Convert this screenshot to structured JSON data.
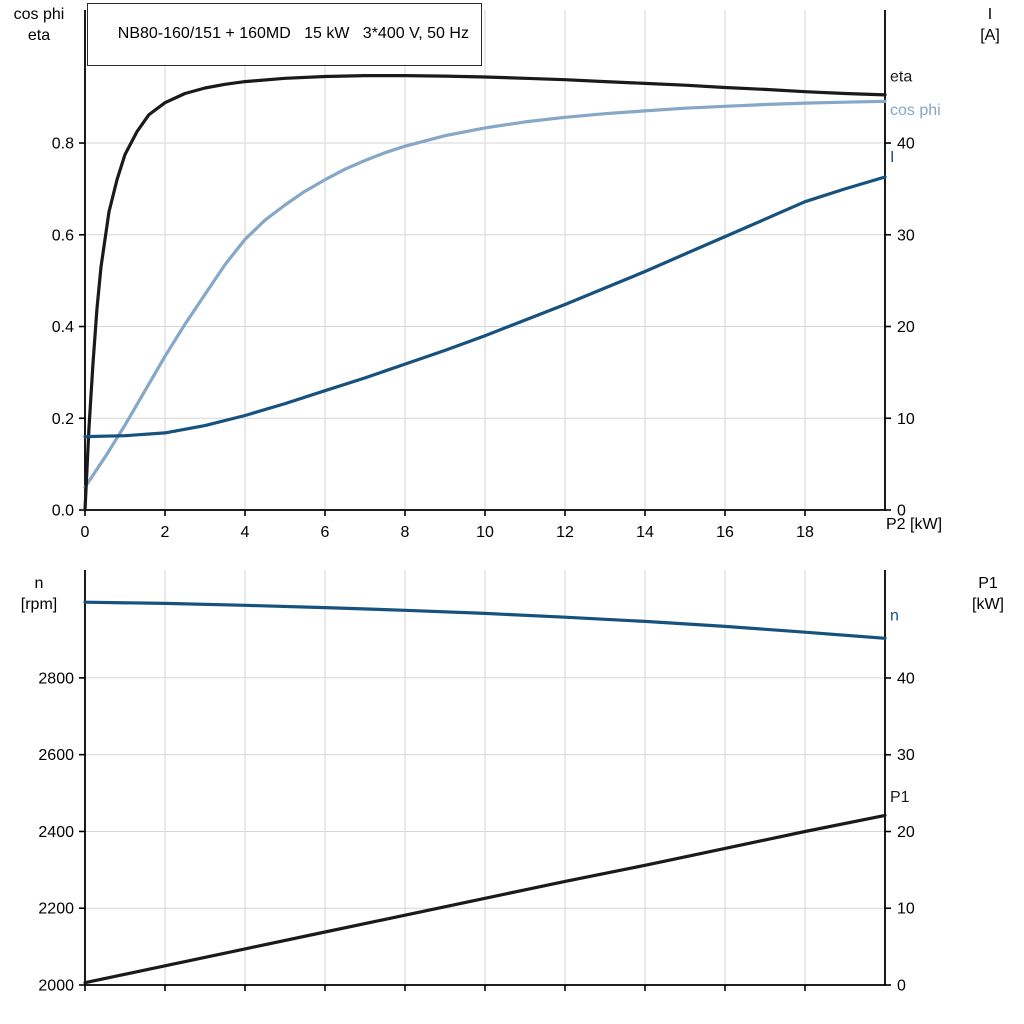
{
  "colors": {
    "grid": "#d6d6d6",
    "axis": "#000000",
    "black_curve": "#1a1a1a",
    "light_blue": "#86a7c7",
    "dark_blue": "#17527e"
  },
  "chart_data": [
    {
      "type": "line",
      "title": "NB80-160/151 + 160MD   15 kW   3*400 V, 50 Hz",
      "x_label": "P2 [kW]",
      "x_axis": {
        "range": [
          0,
          20
        ],
        "ticks": [
          0,
          2,
          4,
          6,
          8,
          10,
          12,
          14,
          16,
          18
        ],
        "tick_labels": [
          "0",
          "2",
          "4",
          "6",
          "8",
          "10",
          "12",
          "14",
          "16",
          "18"
        ],
        "show_labels": true
      },
      "left_axis": {
        "label_lines": [
          "cos phi",
          "eta"
        ],
        "range": [
          0,
          1.09
        ],
        "ticks": [
          0,
          0.2,
          0.4,
          0.6,
          0.8
        ],
        "tick_labels": [
          "0.0",
          "0.2",
          "0.4",
          "0.6",
          "0.8"
        ]
      },
      "right_axis": {
        "label_lines": [
          "I",
          "[A]"
        ],
        "range": [
          0,
          54.5
        ],
        "ticks": [
          0,
          10,
          20,
          30,
          40
        ],
        "tick_labels": [
          "0",
          "10",
          "20",
          "30",
          "40"
        ]
      },
      "series": [
        {
          "key": "cos-phi",
          "label": "cos phi",
          "axis": "left",
          "color": "#86a7c7",
          "label_value": 0.872,
          "points": [
            [
              0,
              0.05
            ],
            [
              0.5,
              0.115
            ],
            [
              1,
              0.185
            ],
            [
              1.5,
              0.26
            ],
            [
              2,
              0.335
            ],
            [
              2.5,
              0.405
            ],
            [
              3,
              0.47
            ],
            [
              3.5,
              0.535
            ],
            [
              4,
              0.59
            ],
            [
              4.5,
              0.632
            ],
            [
              5,
              0.665
            ],
            [
              5.5,
              0.695
            ],
            [
              6,
              0.72
            ],
            [
              6.5,
              0.743
            ],
            [
              7,
              0.762
            ],
            [
              7.5,
              0.779
            ],
            [
              8,
              0.793
            ],
            [
              9,
              0.816
            ],
            [
              10,
              0.833
            ],
            [
              11,
              0.846
            ],
            [
              12,
              0.856
            ],
            [
              13,
              0.864
            ],
            [
              14,
              0.87
            ],
            [
              15,
              0.876
            ],
            [
              16,
              0.88
            ],
            [
              17,
              0.884
            ],
            [
              18,
              0.887
            ],
            [
              19,
              0.889
            ],
            [
              20,
              0.891
            ]
          ]
        },
        {
          "key": "eta",
          "label": "eta",
          "axis": "left",
          "color": "#1a1a1a",
          "label_value": 0.945,
          "points": [
            [
              0,
              0
            ],
            [
              0.1,
              0.18
            ],
            [
              0.2,
              0.32
            ],
            [
              0.3,
              0.44
            ],
            [
              0.4,
              0.53
            ],
            [
              0.6,
              0.65
            ],
            [
              0.8,
              0.72
            ],
            [
              1,
              0.775
            ],
            [
              1.3,
              0.825
            ],
            [
              1.6,
              0.862
            ],
            [
              2,
              0.888
            ],
            [
              2.5,
              0.908
            ],
            [
              3,
              0.92
            ],
            [
              3.5,
              0.928
            ],
            [
              4,
              0.934
            ],
            [
              5,
              0.941
            ],
            [
              6,
              0.945
            ],
            [
              7,
              0.947
            ],
            [
              8,
              0.947
            ],
            [
              9,
              0.946
            ],
            [
              10,
              0.944
            ],
            [
              11,
              0.941
            ],
            [
              12,
              0.938
            ],
            [
              13,
              0.934
            ],
            [
              14,
              0.93
            ],
            [
              15,
              0.926
            ],
            [
              16,
              0.921
            ],
            [
              17,
              0.917
            ],
            [
              18,
              0.912
            ],
            [
              19,
              0.908
            ],
            [
              20,
              0.905
            ]
          ]
        },
        {
          "key": "current",
          "label": "I",
          "axis": "right",
          "color": "#17527e",
          "label_value": 38.5,
          "points": [
            [
              0,
              8
            ],
            [
              1,
              8.1
            ],
            [
              2,
              8.4
            ],
            [
              3,
              9.2
            ],
            [
              4,
              10.3
            ],
            [
              5,
              11.6
            ],
            [
              6,
              13
            ],
            [
              7,
              14.4
            ],
            [
              8,
              15.9
            ],
            [
              9,
              17.4
            ],
            [
              10,
              19
            ],
            [
              11,
              20.7
            ],
            [
              12,
              22.4
            ],
            [
              13,
              24.2
            ],
            [
              14,
              26
            ],
            [
              15,
              27.9
            ],
            [
              16,
              29.8
            ],
            [
              17,
              31.7
            ],
            [
              18,
              33.6
            ],
            [
              19,
              35
            ],
            [
              20,
              36.3
            ]
          ]
        }
      ]
    },
    {
      "type": "line",
      "title": "",
      "x_label": "",
      "x_axis": {
        "range": [
          0,
          20
        ],
        "ticks": [
          0,
          2,
          4,
          6,
          8,
          10,
          12,
          14,
          16,
          18
        ],
        "tick_labels": [],
        "show_labels": false
      },
      "left_axis": {
        "label_lines": [
          "n",
          "[rpm]"
        ],
        "range": [
          2000,
          3081
        ],
        "ticks": [
          2000,
          2200,
          2400,
          2600,
          2800
        ],
        "tick_labels": [
          "2000",
          "2200",
          "2400",
          "2600",
          "2800"
        ]
      },
      "right_axis": {
        "label_lines": [
          "P1",
          "[kW]"
        ],
        "range": [
          0,
          54.07
        ],
        "ticks": [
          0,
          10,
          20,
          30,
          40
        ],
        "tick_labels": [
          "0",
          "10",
          "20",
          "30",
          "40"
        ]
      },
      "series": [
        {
          "key": "speed",
          "label": "n",
          "axis": "left",
          "color": "#17527e",
          "label_value": 2962,
          "points": [
            [
              0,
              2997
            ],
            [
              2,
              2994
            ],
            [
              4,
              2989
            ],
            [
              6,
              2983
            ],
            [
              8,
              2976
            ],
            [
              10,
              2968
            ],
            [
              12,
              2958
            ],
            [
              14,
              2947
            ],
            [
              16,
              2934
            ],
            [
              18,
              2919
            ],
            [
              20,
              2903
            ]
          ]
        },
        {
          "key": "p1",
          "label": "P1",
          "axis": "right",
          "color": "#1a1a1a",
          "label_value": 24.5,
          "points": [
            [
              0,
              0.3
            ],
            [
              2,
              2.5
            ],
            [
              4,
              4.7
            ],
            [
              6,
              6.9
            ],
            [
              8,
              9.1
            ],
            [
              10,
              11.3
            ],
            [
              12,
              13.5
            ],
            [
              14,
              15.6
            ],
            [
              16,
              17.8
            ],
            [
              18,
              20
            ],
            [
              20,
              22.1
            ]
          ]
        }
      ]
    }
  ]
}
